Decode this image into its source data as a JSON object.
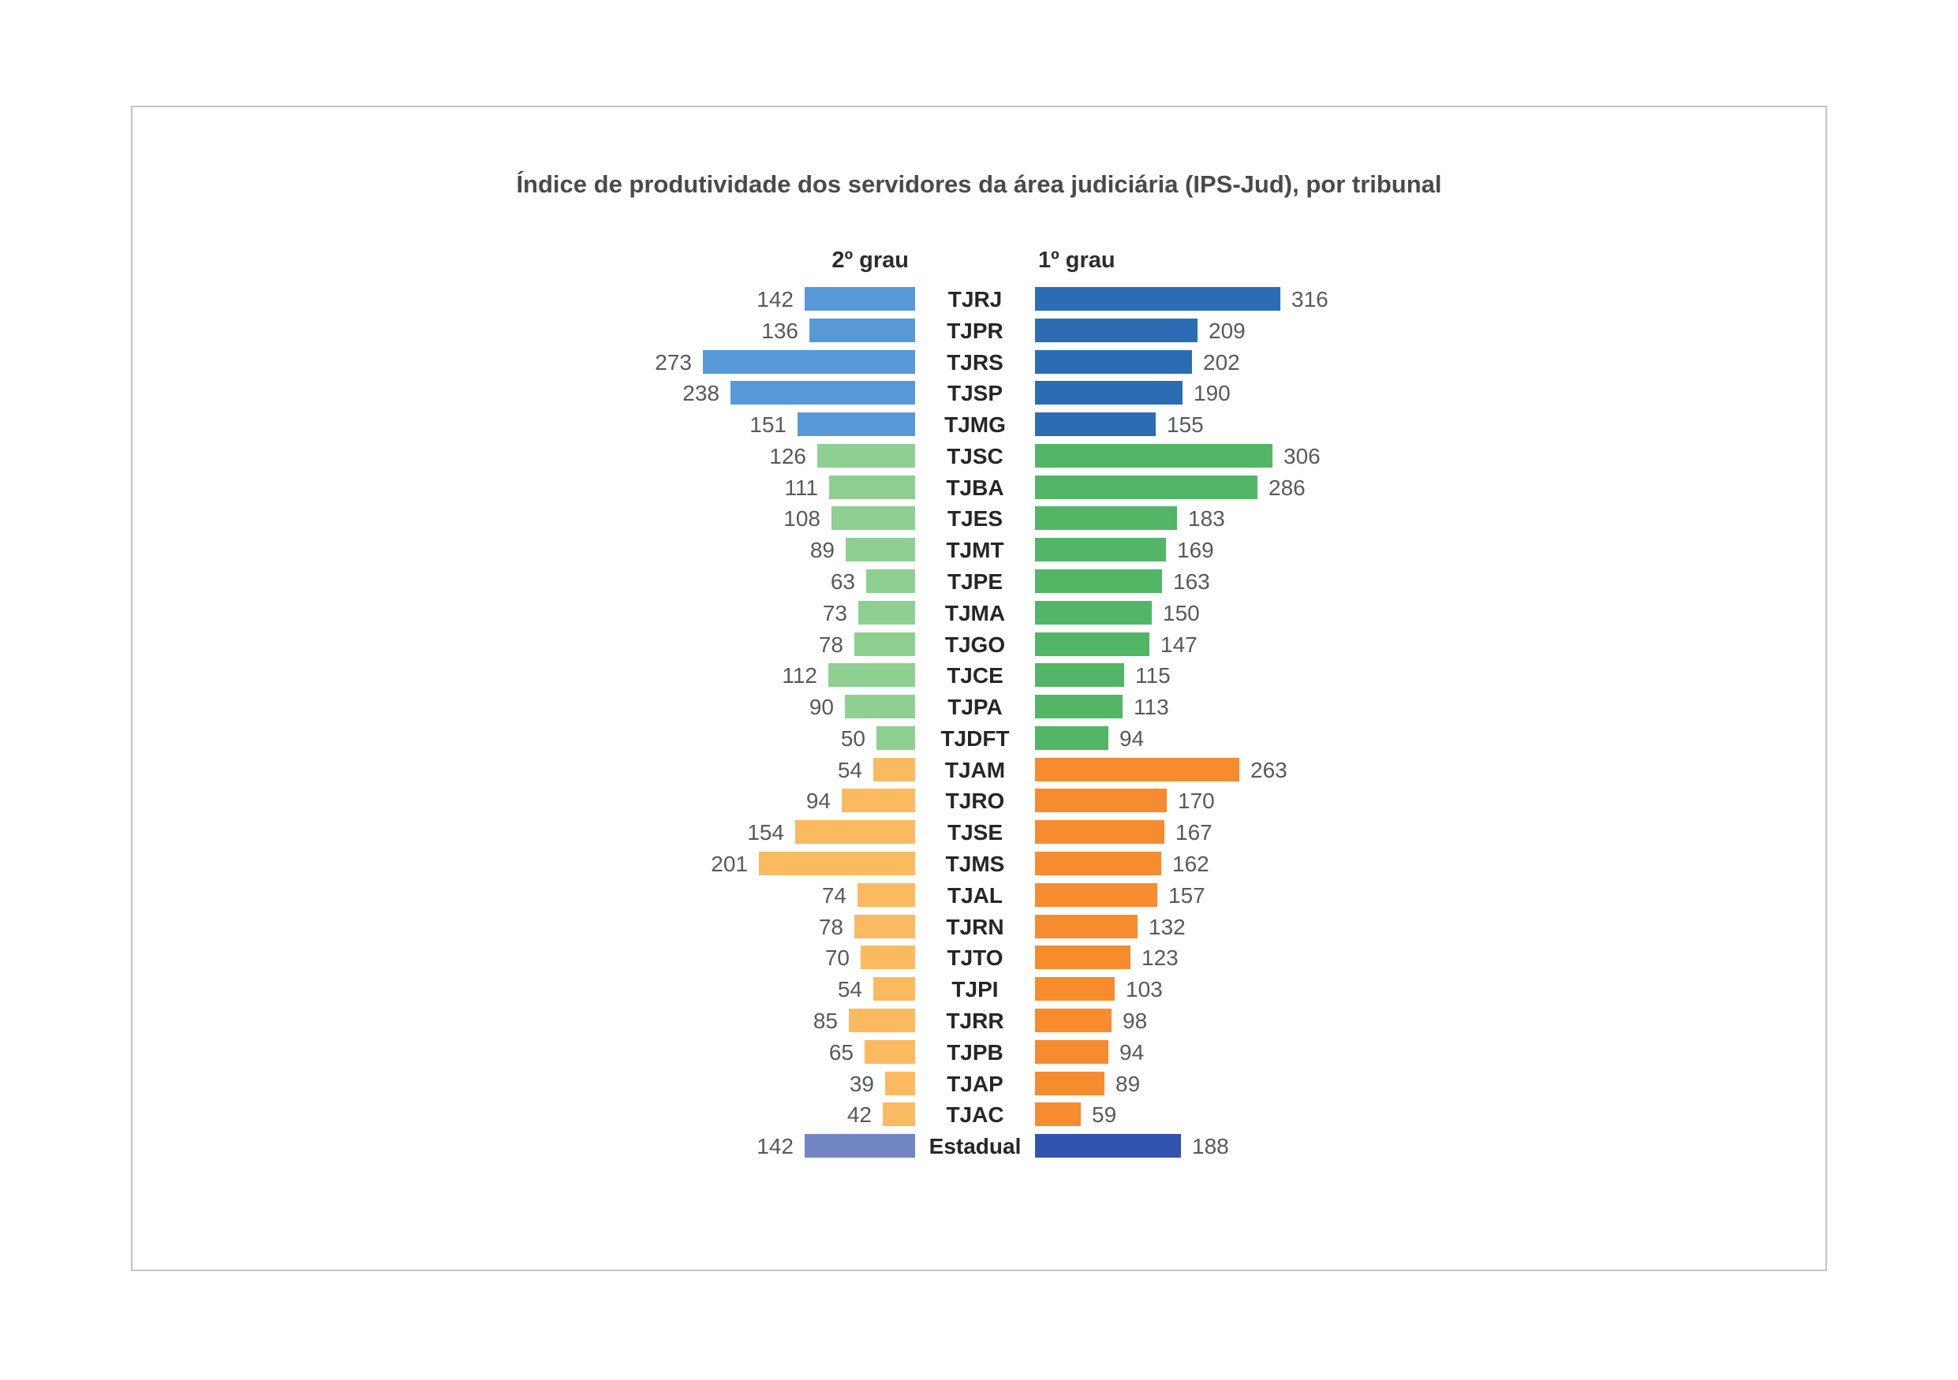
{
  "title": "Índice de produtividade dos servidores da área judiciária (IPS-Jud), por tribunal",
  "chart_data": {
    "type": "bar",
    "layout": "diverging-horizontal",
    "left_series_label": "2º grau",
    "right_series_label": "1º grau",
    "categories": [
      "TJRJ",
      "TJPR",
      "TJRS",
      "TJSP",
      "TJMG",
      "TJSC",
      "TJBA",
      "TJES",
      "TJMT",
      "TJPE",
      "TJMA",
      "TJGO",
      "TJCE",
      "TJPA",
      "TJDFT",
      "TJAM",
      "TJRO",
      "TJSE",
      "TJMS",
      "TJAL",
      "TJRN",
      "TJTO",
      "TJPI",
      "TJRR",
      "TJPB",
      "TJAP",
      "TJAC",
      "Estadual"
    ],
    "series": [
      {
        "name": "2º grau",
        "side": "left",
        "values": [
          142,
          136,
          273,
          238,
          151,
          126,
          111,
          108,
          89,
          63,
          73,
          78,
          112,
          90,
          50,
          54,
          94,
          154,
          201,
          74,
          78,
          70,
          54,
          85,
          65,
          39,
          42,
          142
        ]
      },
      {
        "name": "1º grau",
        "side": "right",
        "values": [
          316,
          209,
          202,
          190,
          155,
          306,
          286,
          183,
          169,
          163,
          150,
          147,
          115,
          113,
          94,
          263,
          170,
          167,
          162,
          157,
          132,
          123,
          103,
          98,
          94,
          89,
          59,
          188
        ]
      }
    ],
    "color_groups": [
      {
        "name": "blue-group",
        "start": 0,
        "end": 4,
        "left_color": "#5799d6",
        "right_color": "#2b6cb5"
      },
      {
        "name": "green-group",
        "start": 5,
        "end": 14,
        "left_color": "#8fcf92",
        "right_color": "#53b566"
      },
      {
        "name": "orange-group",
        "start": 15,
        "end": 26,
        "left_color": "#fbba60",
        "right_color": "#f68c2e"
      },
      {
        "name": "estadual-group",
        "start": 27,
        "end": 27,
        "left_color": "#7186c3",
        "right_color": "#3254ae"
      }
    ],
    "value_range": [
      0,
      316
    ],
    "grid": false,
    "legend_position": "top-inline-headers"
  },
  "text_colors": {
    "title": "#4a4a4a",
    "category_label": "#262626",
    "value_label": "#58595b"
  }
}
